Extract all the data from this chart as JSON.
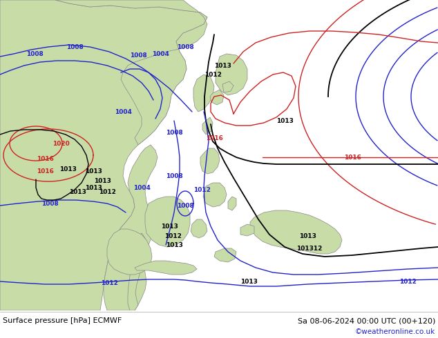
{
  "title_left": "Surface pressure [hPa] ECMWF",
  "title_right": "Sa 08-06-2024 00:00 UTC (00+120)",
  "copyright": "©weatheronline.co.uk",
  "bg_ocean": "#c8d4dc",
  "land_color": "#c8dca8",
  "land_stroke": "#888888",
  "footer_bg": "#ffffff",
  "blue": "#2222cc",
  "red": "#cc2222",
  "black": "#000000",
  "fs_label": 6.5,
  "lw_isobar": 1.0
}
